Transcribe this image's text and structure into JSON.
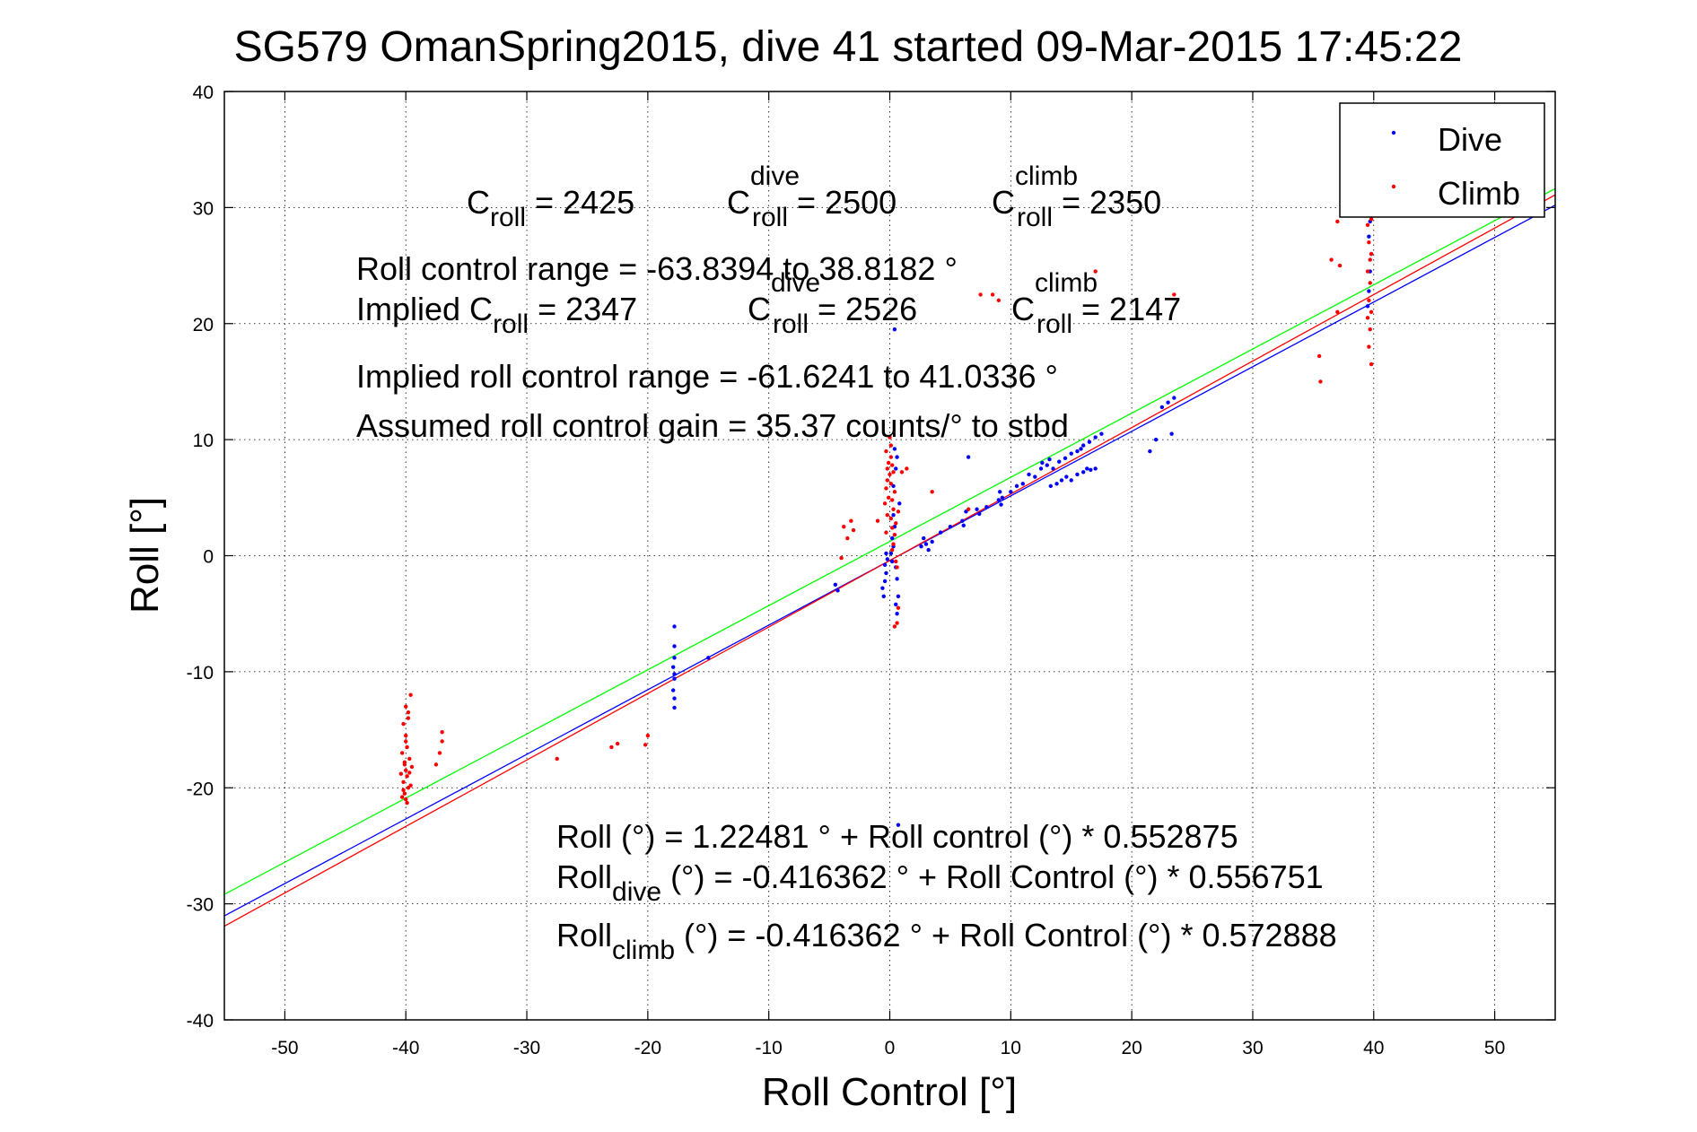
{
  "chart_data": {
    "type": "scatter",
    "title": "SG579 OmanSpring2015, dive 41 started 09-Mar-2015 17:45:22",
    "xlabel": "Roll Control [°]",
    "ylabel": "Roll [°]",
    "xlim": [
      -55,
      55
    ],
    "ylim": [
      -40,
      40
    ],
    "xticks": [
      -50,
      -40,
      -30,
      -20,
      -10,
      0,
      10,
      20,
      30,
      40,
      50
    ],
    "yticks": [
      -40,
      -30,
      -20,
      -10,
      0,
      10,
      20,
      30,
      40
    ],
    "grid": true,
    "legend_position": "top-right",
    "series": [
      {
        "name": "Dive",
        "color": "#0000ff",
        "points": [
          [
            -4.5,
            -2.5
          ],
          [
            -4.3,
            -3.0
          ],
          [
            -17.8,
            -6.1
          ],
          [
            -17.8,
            -7.8
          ],
          [
            -17.8,
            -8.8
          ],
          [
            -17.9,
            -9.6
          ],
          [
            -17.8,
            -10.2
          ],
          [
            -17.8,
            -10.6
          ],
          [
            -17.9,
            -11.6
          ],
          [
            -17.8,
            -12.3
          ],
          [
            -17.8,
            -13.1
          ],
          [
            -15,
            -8.8
          ],
          [
            -0.5,
            -3.5
          ],
          [
            -0.6,
            -2.8
          ],
          [
            -0.4,
            -2.2
          ],
          [
            -0.3,
            -1.5
          ],
          [
            -0.4,
            -0.8
          ],
          [
            -0.2,
            -0.3
          ],
          [
            -0.3,
            0.2
          ],
          [
            0.2,
            -0.5
          ],
          [
            0.1,
            0.2
          ],
          [
            0.3,
            0.8
          ],
          [
            0.2,
            1.5
          ],
          [
            0.4,
            2.5
          ],
          [
            0.3,
            3.5
          ],
          [
            0.5,
            -1.0
          ],
          [
            0.6,
            -2.0
          ],
          [
            0.7,
            -3.5
          ],
          [
            0.5,
            7.5
          ],
          [
            0.6,
            8.5
          ],
          [
            0.4,
            9.2
          ],
          [
            0.3,
            6.0
          ],
          [
            0.8,
            4.5
          ],
          [
            0.4,
            19.5
          ],
          [
            0.7,
            -23.2
          ],
          [
            0.6,
            -5.0
          ],
          [
            0.5,
            -4.2
          ],
          [
            2.8,
            1.5
          ],
          [
            3.0,
            1.0
          ],
          [
            3.2,
            0.5
          ],
          [
            3.5,
            1.2
          ],
          [
            2.6,
            0.8
          ],
          [
            4.2,
            2.0
          ],
          [
            5.0,
            2.5
          ],
          [
            6.0,
            3.0
          ],
          [
            6.1,
            2.6
          ],
          [
            6.3,
            3.8
          ],
          [
            6.5,
            8.5
          ],
          [
            7.2,
            4.0
          ],
          [
            7.4,
            3.6
          ],
          [
            8.0,
            4.2
          ],
          [
            9.0,
            4.8
          ],
          [
            9.1,
            5.5
          ],
          [
            9.3,
            5.0
          ],
          [
            9.2,
            4.4
          ],
          [
            10.0,
            5.5
          ],
          [
            10.5,
            6.0
          ],
          [
            11.0,
            6.2
          ],
          [
            11.5,
            7.0
          ],
          [
            12.0,
            6.8
          ],
          [
            12.5,
            7.5
          ],
          [
            12.6,
            8.0
          ],
          [
            13.0,
            7.8
          ],
          [
            13.2,
            8.3
          ],
          [
            13.5,
            7.5
          ],
          [
            14.0,
            8.1
          ],
          [
            14.5,
            8.4
          ],
          [
            13.3,
            6.0
          ],
          [
            13.8,
            6.2
          ],
          [
            14.2,
            6.5
          ],
          [
            14.6,
            6.8
          ],
          [
            15.0,
            6.5
          ],
          [
            15.5,
            7.0
          ],
          [
            16.0,
            7.2
          ],
          [
            16.3,
            7.5
          ],
          [
            16.6,
            7.4
          ],
          [
            17.0,
            7.5
          ],
          [
            15.0,
            8.8
          ],
          [
            15.5,
            9.0
          ],
          [
            16.0,
            9.5
          ],
          [
            16.5,
            9.8
          ],
          [
            17.0,
            10.2
          ],
          [
            17.5,
            10.5
          ],
          [
            15.8,
            9.2
          ],
          [
            21.5,
            9.0
          ],
          [
            22.0,
            10.0
          ],
          [
            22.5,
            12.8
          ],
          [
            23.0,
            13.2
          ],
          [
            23.5,
            13.6
          ],
          [
            23.3,
            10.5
          ],
          [
            39.5,
            21.5
          ],
          [
            39.6,
            22.8
          ],
          [
            39.7,
            24.5
          ],
          [
            39.8,
            26.0
          ],
          [
            39.6,
            27.5
          ],
          [
            39.7,
            28.8
          ],
          [
            39.8,
            30.0
          ]
        ]
      },
      {
        "name": "Climb",
        "color": "#ff0000",
        "points": [
          [
            -40,
            -21.0
          ],
          [
            -40.1,
            -20.5
          ],
          [
            -39.8,
            -20.0
          ],
          [
            -40.2,
            -19.5
          ],
          [
            -39.9,
            -19.0
          ],
          [
            -40.0,
            -18.5
          ],
          [
            -40.1,
            -18.0
          ],
          [
            -39.7,
            -17.5
          ],
          [
            -40.3,
            -17.0
          ],
          [
            -39.9,
            -16.5
          ],
          [
            -40.0,
            -15.5
          ],
          [
            -40.2,
            -14.5
          ],
          [
            -39.8,
            -13.5
          ],
          [
            -40.0,
            -13.0
          ],
          [
            -39.6,
            -12.0
          ],
          [
            -40.3,
            -20.8
          ],
          [
            -39.6,
            -19.8
          ],
          [
            -40.4,
            -18.8
          ],
          [
            -39.5,
            -18.2
          ],
          [
            -40.1,
            -17.8
          ],
          [
            -39.9,
            -21.3
          ],
          [
            -40.2,
            -20.2
          ],
          [
            -39.7,
            -18.7
          ],
          [
            -40.0,
            -16.0
          ],
          [
            -39.8,
            -14.0
          ],
          [
            -37.0,
            -15.2
          ],
          [
            -37.0,
            -16.0
          ],
          [
            -37.2,
            -17.0
          ],
          [
            -37.5,
            -18.0
          ],
          [
            -27.5,
            -17.5
          ],
          [
            -23.0,
            -16.5
          ],
          [
            -22.5,
            -16.2
          ],
          [
            -20.0,
            -15.5
          ],
          [
            -20.2,
            -16.3
          ],
          [
            -4.0,
            -0.2
          ],
          [
            -3.5,
            1.5
          ],
          [
            -3.8,
            2.5
          ],
          [
            -3.2,
            3.0
          ],
          [
            -3.0,
            2.2
          ],
          [
            -1.0,
            3.0
          ],
          [
            -0.3,
            2.0
          ],
          [
            -0.2,
            3.5
          ],
          [
            -0.4,
            4.5
          ],
          [
            -0.1,
            5.0
          ],
          [
            -0.3,
            5.8
          ],
          [
            -0.2,
            6.5
          ],
          [
            0.0,
            7.0
          ],
          [
            -0.2,
            7.5
          ],
          [
            -0.1,
            8.0
          ],
          [
            0.1,
            8.5
          ],
          [
            -0.3,
            9.0
          ],
          [
            0.0,
            10.2
          ],
          [
            0.2,
            0.5
          ],
          [
            0.3,
            1.0
          ],
          [
            0.4,
            1.8
          ],
          [
            0.2,
            2.4
          ],
          [
            0.1,
            3.2
          ],
          [
            0.3,
            4.0
          ],
          [
            0.2,
            4.8
          ],
          [
            0.4,
            5.5
          ],
          [
            0.1,
            6.2
          ],
          [
            0.3,
            7.2
          ],
          [
            0.2,
            7.8
          ],
          [
            0.1,
            9.5
          ],
          [
            0.5,
            -0.5
          ],
          [
            0.6,
            -1.0
          ],
          [
            0.6,
            -5.8
          ],
          [
            0.4,
            -6.1
          ],
          [
            0.7,
            -4.5
          ],
          [
            0.5,
            2.8
          ],
          [
            0.7,
            3.8
          ],
          [
            1.0,
            7.2
          ],
          [
            1.4,
            7.5
          ],
          [
            3.5,
            5.5
          ],
          [
            6.5,
            4.0
          ],
          [
            7.5,
            22.5
          ],
          [
            8.5,
            22.5
          ],
          [
            9.0,
            22.0
          ],
          [
            17.0,
            24.5
          ],
          [
            23.5,
            22.5
          ],
          [
            35.5,
            17.2
          ],
          [
            35.6,
            15.0
          ],
          [
            36.5,
            25.5
          ],
          [
            37.0,
            21.0
          ],
          [
            37.0,
            28.8
          ],
          [
            37.2,
            25.0
          ],
          [
            39.5,
            29.5
          ],
          [
            39.6,
            30.0
          ],
          [
            39.7,
            30.5
          ],
          [
            39.8,
            29.0
          ],
          [
            39.5,
            28.5
          ],
          [
            39.6,
            27.0
          ],
          [
            39.8,
            26.0
          ],
          [
            39.7,
            25.5
          ],
          [
            39.5,
            24.5
          ],
          [
            39.7,
            23.5
          ],
          [
            39.6,
            22.0
          ],
          [
            39.8,
            21.0
          ],
          [
            39.5,
            20.5
          ],
          [
            39.7,
            19.5
          ],
          [
            39.6,
            18.0
          ],
          [
            39.8,
            16.5
          ],
          [
            39.7,
            31.5
          ]
        ]
      }
    ],
    "fit_lines": [
      {
        "name": "Fit",
        "color": "#00ff00",
        "intercept": 1.22481,
        "slope": 0.552875
      },
      {
        "name": "Dive fit",
        "color": "#0000ff",
        "intercept": -0.416362,
        "slope": 0.556751
      },
      {
        "name": "Climb fit",
        "color": "#ff0000",
        "intercept": -0.416362,
        "slope": 0.572888
      }
    ],
    "annotations": {
      "c_roll_base": "C",
      "c_roll_sub": "roll",
      "c_roll_val": " = 2425",
      "c_dive_base": "C",
      "c_dive_sup": "dive",
      "c_dive_sub": "roll",
      "c_dive_val": " = 2500",
      "c_climb_base": "C",
      "c_climb_sup": "climb",
      "c_climb_sub": "roll",
      "c_climb_val": " = 2350",
      "range_line": "Roll control range = -63.8394 to 38.8182 °",
      "implied_prefix": "Implied C",
      "implied_sub": "roll",
      "implied_val": " = 2347",
      "implied_dive_base": "C",
      "implied_dive_sup": "dive",
      "implied_dive_sub": "roll",
      "implied_dive_val": " = 2526",
      "implied_climb_base": "C",
      "implied_climb_sup": "climb",
      "implied_climb_sub": "roll",
      "implied_climb_val": " = 2147",
      "implied_range": "Implied roll control range = -61.6241 to 41.0336 °",
      "gain_line": "Assumed roll control gain = 35.37 counts/° to stbd",
      "eq1": "Roll (°) = 1.22481 ° + Roll control (°) * 0.552875",
      "eq2_base": "Roll",
      "eq2_sub": "dive",
      "eq2_rest": " (°) = -0.416362 ° + Roll Control (°) * 0.556751",
      "eq3_base": "Roll",
      "eq3_sub": "climb",
      "eq3_rest": " (°) = -0.416362 ° + Roll Control (°) * 0.572888"
    }
  }
}
